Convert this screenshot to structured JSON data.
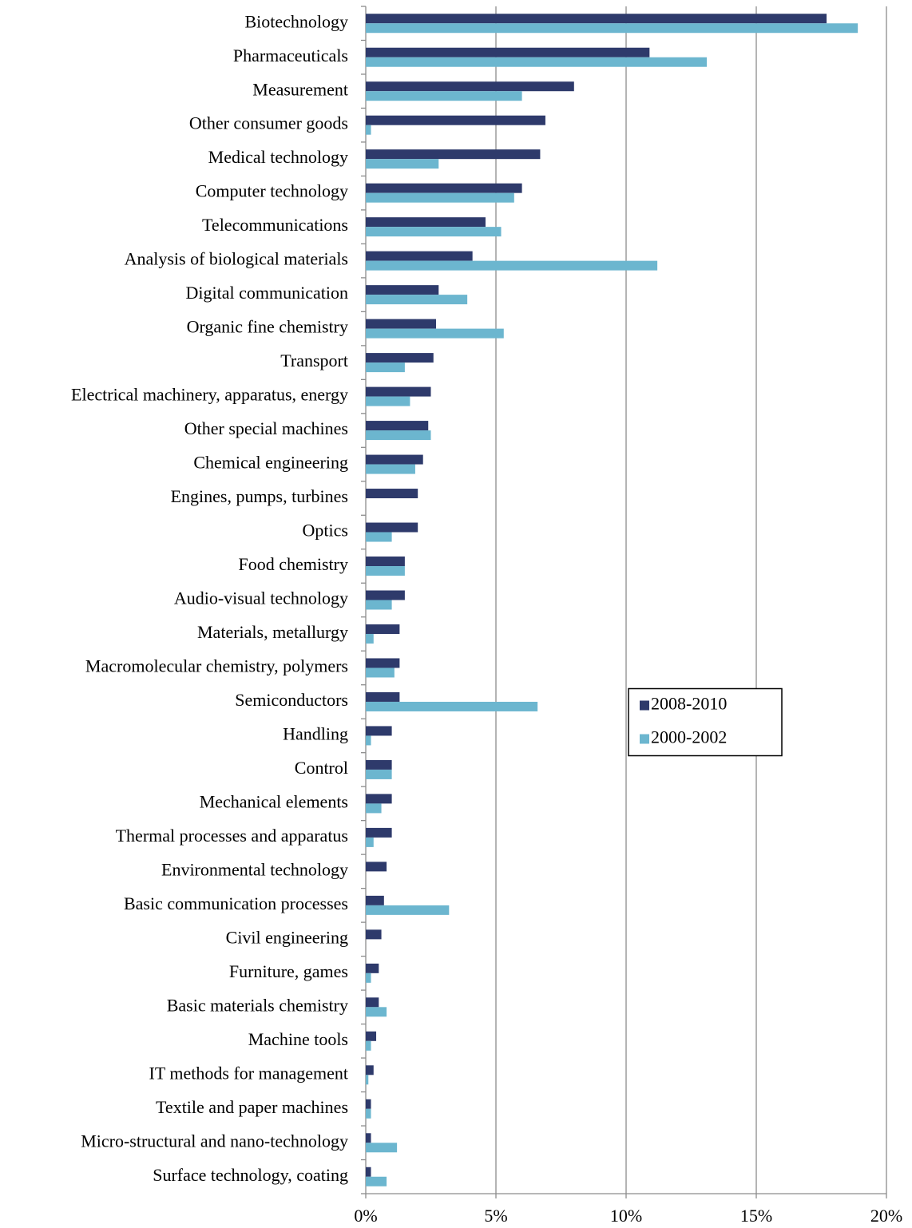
{
  "chart_data": {
    "type": "hbar",
    "categories": [
      "Biotechnology",
      "Pharmaceuticals",
      "Measurement",
      "Other consumer goods",
      "Medical technology",
      "Computer technology",
      "Telecommunications",
      "Analysis of biological materials",
      "Digital communication",
      "Organic fine chemistry",
      "Transport",
      "Electrical machinery, apparatus, energy",
      "Other special machines",
      "Chemical engineering",
      "Engines, pumps, turbines",
      "Optics",
      "Food chemistry",
      "Audio-visual technology",
      "Materials, metallurgy",
      "Macromolecular chemistry, polymers",
      "Semiconductors",
      "Handling",
      "Control",
      "Mechanical elements",
      "Thermal processes and apparatus",
      "Environmental technology",
      "Basic communication processes",
      "Civil engineering",
      "Furniture, games",
      "Basic materials chemistry",
      "Machine tools",
      "IT methods for management",
      "Textile and paper machines",
      "Micro-structural and nano-technology",
      "Surface technology, coating"
    ],
    "series": [
      {
        "name": "2008-2010",
        "color": "#2e3a6b",
        "values": [
          17.7,
          10.9,
          8.0,
          6.9,
          6.7,
          6.0,
          4.6,
          4.1,
          2.8,
          2.7,
          2.6,
          2.5,
          2.4,
          2.2,
          2.0,
          2.0,
          1.5,
          1.5,
          1.3,
          1.3,
          1.3,
          1.0,
          1.0,
          1.0,
          1.0,
          0.8,
          0.7,
          0.6,
          0.5,
          0.5,
          0.4,
          0.3,
          0.2,
          0.2,
          0.2
        ]
      },
      {
        "name": "2000-2002",
        "color": "#6cb6cf",
        "values": [
          18.9,
          13.1,
          6.0,
          0.2,
          2.8,
          5.7,
          5.2,
          11.2,
          3.9,
          5.3,
          1.5,
          1.7,
          2.5,
          1.9,
          0,
          1.0,
          1.5,
          1.0,
          0.3,
          1.1,
          6.6,
          0.2,
          1.0,
          0.6,
          0.3,
          0,
          3.2,
          0,
          0.2,
          0.8,
          0.2,
          0.1,
          0.2,
          1.2,
          0.8
        ]
      }
    ],
    "xlim": [
      0,
      20
    ],
    "xticks": [
      {
        "value": 0,
        "label": "0%"
      },
      {
        "value": 5,
        "label": "5%"
      },
      {
        "value": 10,
        "label": "10%"
      },
      {
        "value": 15,
        "label": "15%"
      },
      {
        "value": 20,
        "label": "20%"
      }
    ],
    "grid": true,
    "legend_position": "center-right"
  }
}
